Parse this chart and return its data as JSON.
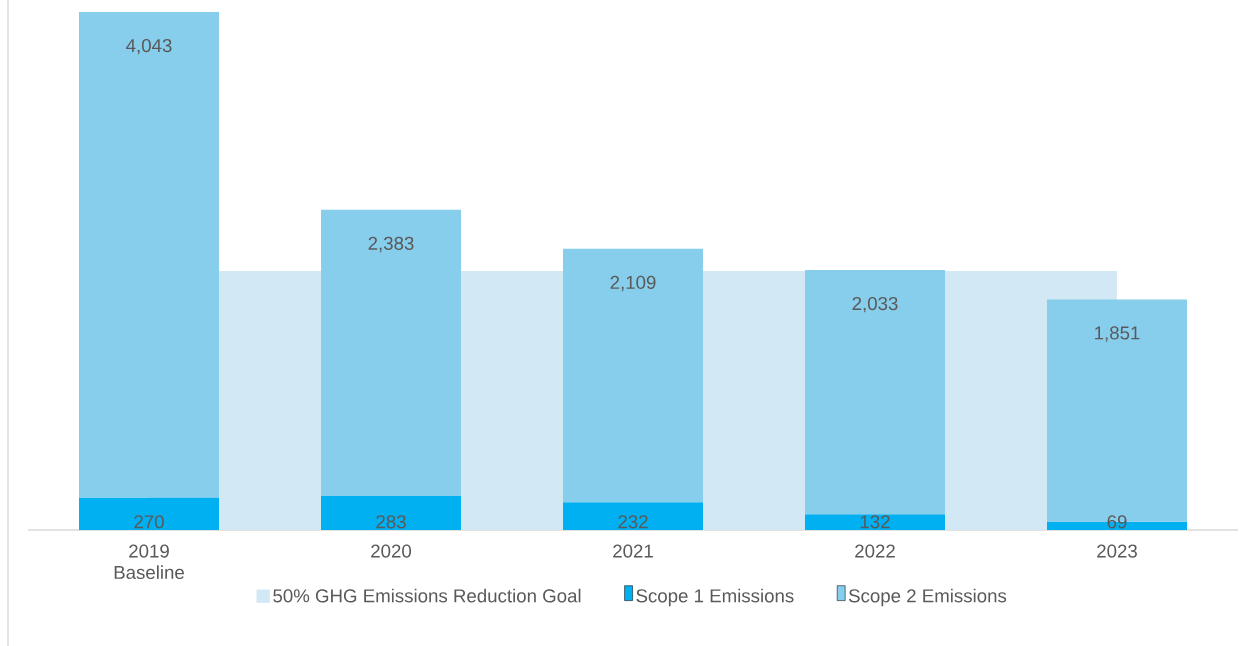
{
  "chart_data": {
    "type": "bar",
    "stacked": true,
    "categories": [
      "2019 Baseline",
      "2020",
      "2021",
      "2022",
      "2023"
    ],
    "series": [
      {
        "name": "Scope 1 Emissions",
        "color": "#00b0f0",
        "values": [
          270,
          283,
          232,
          132,
          69
        ],
        "value_labels": [
          "270",
          "283",
          "232",
          "132",
          "69"
        ]
      },
      {
        "name": "Scope 2 Emissions",
        "color": "#87cdec",
        "values": [
          4043,
          2383,
          2109,
          2033,
          1851
        ],
        "value_labels": [
          "4,043",
          "2,383",
          "2,109",
          "2,033",
          "1,851"
        ]
      }
    ],
    "bands": [
      {
        "axis": "y",
        "from": 0,
        "to": 2157,
        "label": "50% GHG Emissions Reduction Goal",
        "color": "#d3e8f5"
      }
    ],
    "legend": "bottom"
  }
}
